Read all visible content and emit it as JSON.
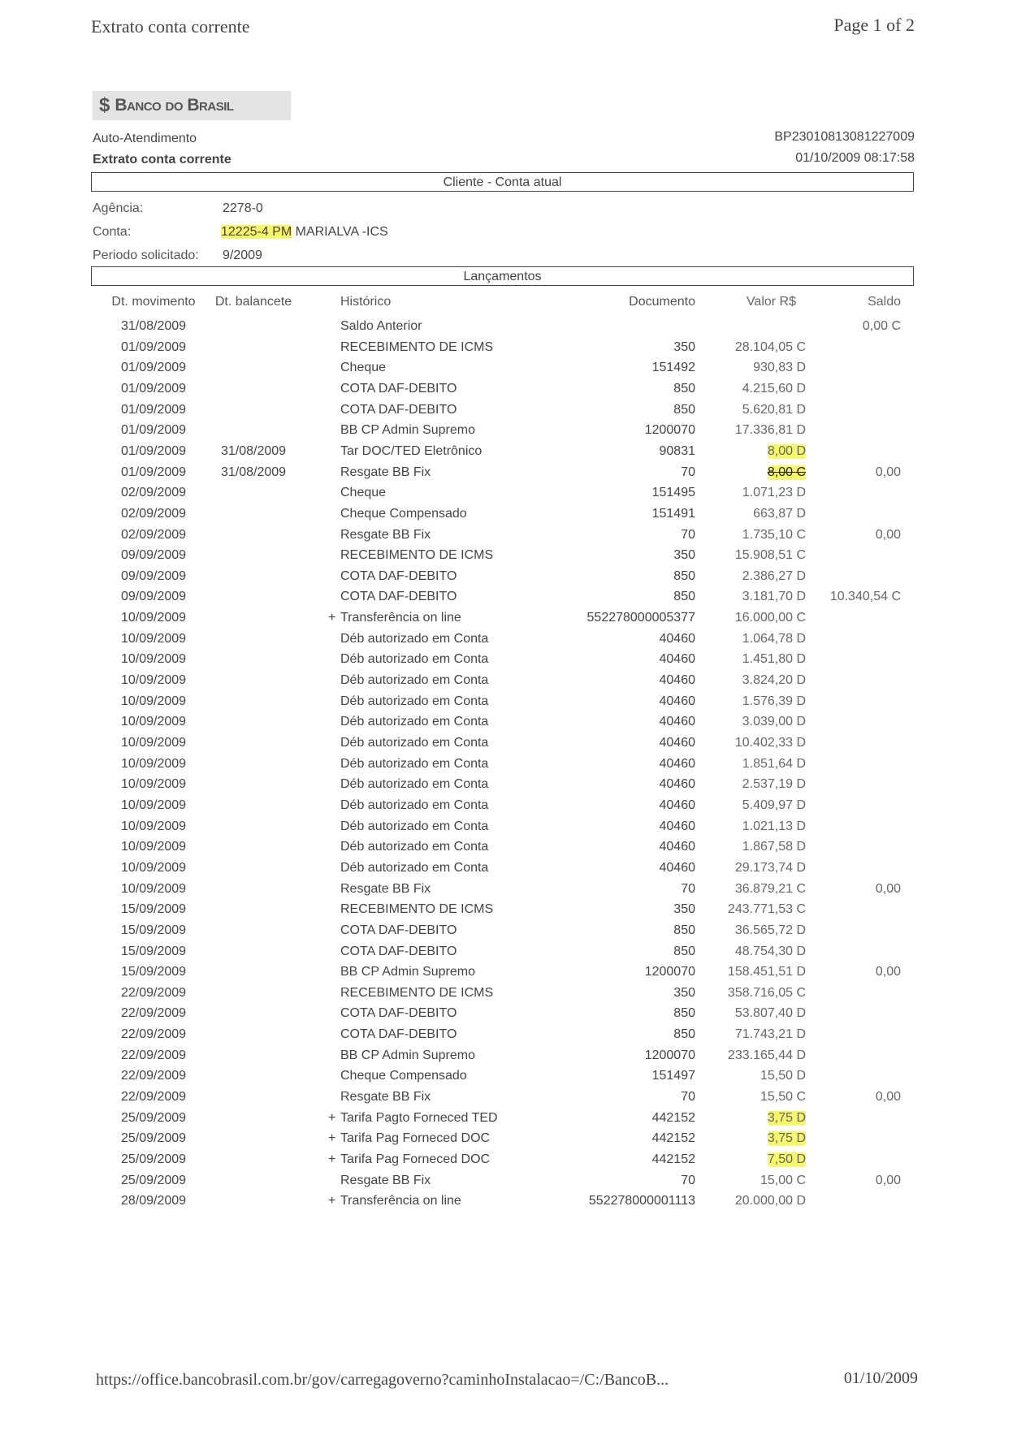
{
  "page_header": {
    "title": "Extrato conta corrente",
    "page": "Page 1 of 2"
  },
  "logo": {
    "text": "Banco do Brasil",
    "icon": "banco-do-brasil-logo-icon"
  },
  "header": {
    "left1": "Auto-Atendimento",
    "left2": "Extrato conta corrente",
    "right1": "BP23010813081227009",
    "right2": "01/10/2009 08:17:58"
  },
  "cliente_box": "Cliente - Conta atual",
  "account": {
    "agencia_label": "Agência:",
    "agencia": "2278-0",
    "conta_label": "Conta:",
    "conta_number": "12225-4 PM",
    "conta_name": " MARIALVA -ICS",
    "periodo_label": "Periodo solicitado:",
    "periodo": "9/2009"
  },
  "lancamentos_box": "Lançamentos",
  "columns": {
    "mov": "Dt. movimento",
    "bal": "Dt. balancete",
    "hist": "Histórico",
    "doc": "Documento",
    "val": "Valor R$",
    "sal": "Saldo"
  },
  "highlight_color": "#f7f76a",
  "rows": [
    {
      "mov": "31/08/2009",
      "bal": "",
      "plus": "",
      "hist": "Saldo Anterior",
      "doc": "",
      "val": "",
      "sal": "0,00 C"
    },
    {
      "mov": "01/09/2009",
      "bal": "",
      "plus": "",
      "hist": "RECEBIMENTO DE ICMS",
      "doc": "350",
      "val": "28.104,05 C",
      "sal": ""
    },
    {
      "mov": "01/09/2009",
      "bal": "",
      "plus": "",
      "hist": "Cheque",
      "doc": "151492",
      "val": "930,83 D",
      "sal": ""
    },
    {
      "mov": "01/09/2009",
      "bal": "",
      "plus": "",
      "hist": "COTA DAF-DEBITO",
      "doc": "850",
      "val": "4.215,60 D",
      "sal": ""
    },
    {
      "mov": "01/09/2009",
      "bal": "",
      "plus": "",
      "hist": "COTA DAF-DEBITO",
      "doc": "850",
      "val": "5.620,81 D",
      "sal": ""
    },
    {
      "mov": "01/09/2009",
      "bal": "",
      "plus": "",
      "hist": "BB CP Admin Supremo",
      "doc": "1200070",
      "val": "17.336,81 D",
      "sal": ""
    },
    {
      "mov": "01/09/2009",
      "bal": "31/08/2009",
      "plus": "",
      "hist": "Tar DOC/TED Eletrônico",
      "doc": "90831",
      "val": "8,00 D",
      "sal": "",
      "highlight": true
    },
    {
      "mov": "01/09/2009",
      "bal": "31/08/2009",
      "plus": "",
      "hist": "Resgate BB Fix",
      "doc": "70",
      "val": "8,00 C",
      "sal": "0,00",
      "highlight": true,
      "struck": true
    },
    {
      "mov": "02/09/2009",
      "bal": "",
      "plus": "",
      "hist": "Cheque",
      "doc": "151495",
      "val": "1.071,23 D",
      "sal": ""
    },
    {
      "mov": "02/09/2009",
      "bal": "",
      "plus": "",
      "hist": "Cheque Compensado",
      "doc": "151491",
      "val": "663,87 D",
      "sal": ""
    },
    {
      "mov": "02/09/2009",
      "bal": "",
      "plus": "",
      "hist": "Resgate BB Fix",
      "doc": "70",
      "val": "1.735,10 C",
      "sal": "0,00"
    },
    {
      "mov": "09/09/2009",
      "bal": "",
      "plus": "",
      "hist": "RECEBIMENTO DE ICMS",
      "doc": "350",
      "val": "15.908,51 C",
      "sal": ""
    },
    {
      "mov": "09/09/2009",
      "bal": "",
      "plus": "",
      "hist": "COTA DAF-DEBITO",
      "doc": "850",
      "val": "2.386,27 D",
      "sal": ""
    },
    {
      "mov": "09/09/2009",
      "bal": "",
      "plus": "",
      "hist": "COTA DAF-DEBITO",
      "doc": "850",
      "val": "3.181,70 D",
      "sal": "10.340,54 C"
    },
    {
      "mov": "10/09/2009",
      "bal": "",
      "plus": "+",
      "hist": "Transferência on line",
      "doc": "552278000005377",
      "val": "16.000,00 C",
      "sal": ""
    },
    {
      "mov": "10/09/2009",
      "bal": "",
      "plus": "",
      "hist": "Déb autorizado em Conta",
      "doc": "40460",
      "val": "1.064,78 D",
      "sal": ""
    },
    {
      "mov": "10/09/2009",
      "bal": "",
      "plus": "",
      "hist": "Déb autorizado em Conta",
      "doc": "40460",
      "val": "1.451,80 D",
      "sal": ""
    },
    {
      "mov": "10/09/2009",
      "bal": "",
      "plus": "",
      "hist": "Déb autorizado em Conta",
      "doc": "40460",
      "val": "3.824,20 D",
      "sal": ""
    },
    {
      "mov": "10/09/2009",
      "bal": "",
      "plus": "",
      "hist": "Déb autorizado em Conta",
      "doc": "40460",
      "val": "1.576,39 D",
      "sal": ""
    },
    {
      "mov": "10/09/2009",
      "bal": "",
      "plus": "",
      "hist": "Déb autorizado em Conta",
      "doc": "40460",
      "val": "3.039,00 D",
      "sal": ""
    },
    {
      "mov": "10/09/2009",
      "bal": "",
      "plus": "",
      "hist": "Déb autorizado em Conta",
      "doc": "40460",
      "val": "10.402,33 D",
      "sal": ""
    },
    {
      "mov": "10/09/2009",
      "bal": "",
      "plus": "",
      "hist": "Déb autorizado em Conta",
      "doc": "40460",
      "val": "1.851,64 D",
      "sal": ""
    },
    {
      "mov": "10/09/2009",
      "bal": "",
      "plus": "",
      "hist": "Déb autorizado em Conta",
      "doc": "40460",
      "val": "2.537,19 D",
      "sal": ""
    },
    {
      "mov": "10/09/2009",
      "bal": "",
      "plus": "",
      "hist": "Déb autorizado em Conta",
      "doc": "40460",
      "val": "5.409,97 D",
      "sal": ""
    },
    {
      "mov": "10/09/2009",
      "bal": "",
      "plus": "",
      "hist": "Déb autorizado em Conta",
      "doc": "40460",
      "val": "1.021,13 D",
      "sal": ""
    },
    {
      "mov": "10/09/2009",
      "bal": "",
      "plus": "",
      "hist": "Déb autorizado em Conta",
      "doc": "40460",
      "val": "1.867,58 D",
      "sal": ""
    },
    {
      "mov": "10/09/2009",
      "bal": "",
      "plus": "",
      "hist": "Déb autorizado em Conta",
      "doc": "40460",
      "val": "29.173,74 D",
      "sal": ""
    },
    {
      "mov": "10/09/2009",
      "bal": "",
      "plus": "",
      "hist": "Resgate BB Fix",
      "doc": "70",
      "val": "36.879,21 C",
      "sal": "0,00"
    },
    {
      "mov": "15/09/2009",
      "bal": "",
      "plus": "",
      "hist": "RECEBIMENTO DE ICMS",
      "doc": "350",
      "val": "243.771,53 C",
      "sal": ""
    },
    {
      "mov": "15/09/2009",
      "bal": "",
      "plus": "",
      "hist": "COTA DAF-DEBITO",
      "doc": "850",
      "val": "36.565,72 D",
      "sal": ""
    },
    {
      "mov": "15/09/2009",
      "bal": "",
      "plus": "",
      "hist": "COTA DAF-DEBITO",
      "doc": "850",
      "val": "48.754,30 D",
      "sal": ""
    },
    {
      "mov": "15/09/2009",
      "bal": "",
      "plus": "",
      "hist": "BB CP Admin Supremo",
      "doc": "1200070",
      "val": "158.451,51 D",
      "sal": "0,00"
    },
    {
      "mov": "22/09/2009",
      "bal": "",
      "plus": "",
      "hist": "RECEBIMENTO DE ICMS",
      "doc": "350",
      "val": "358.716,05 C",
      "sal": ""
    },
    {
      "mov": "22/09/2009",
      "bal": "",
      "plus": "",
      "hist": "COTA DAF-DEBITO",
      "doc": "850",
      "val": "53.807,40 D",
      "sal": ""
    },
    {
      "mov": "22/09/2009",
      "bal": "",
      "plus": "",
      "hist": "COTA DAF-DEBITO",
      "doc": "850",
      "val": "71.743,21 D",
      "sal": ""
    },
    {
      "mov": "22/09/2009",
      "bal": "",
      "plus": "",
      "hist": "BB CP Admin Supremo",
      "doc": "1200070",
      "val": "233.165,44 D",
      "sal": ""
    },
    {
      "mov": "22/09/2009",
      "bal": "",
      "plus": "",
      "hist": "Cheque Compensado",
      "doc": "151497",
      "val": "15,50 D",
      "sal": ""
    },
    {
      "mov": "22/09/2009",
      "bal": "",
      "plus": "",
      "hist": "Resgate BB Fix",
      "doc": "70",
      "val": "15,50 C",
      "sal": "0,00"
    },
    {
      "mov": "25/09/2009",
      "bal": "",
      "plus": "+",
      "hist": "Tarifa Pagto Forneced TED",
      "doc": "442152",
      "val": "3,75 D",
      "sal": "",
      "highlight": true
    },
    {
      "mov": "25/09/2009",
      "bal": "",
      "plus": "+",
      "hist": "Tarifa Pag Forneced DOC",
      "doc": "442152",
      "val": "3,75 D",
      "sal": "",
      "highlight": true
    },
    {
      "mov": "25/09/2009",
      "bal": "",
      "plus": "+",
      "hist": "Tarifa Pag Forneced DOC",
      "doc": "442152",
      "val": "7,50 D",
      "sal": "",
      "highlight": true
    },
    {
      "mov": "25/09/2009",
      "bal": "",
      "plus": "",
      "hist": "Resgate BB Fix",
      "doc": "70",
      "val": "15,00 C",
      "sal": "0,00"
    },
    {
      "mov": "28/09/2009",
      "bal": "",
      "plus": "+",
      "hist": "Transferência on line",
      "doc": "552278000001113",
      "val": "20.000,00 D",
      "sal": ""
    }
  ],
  "footer": {
    "url": "https://office.bancobrasil.com.br/gov/carregagoverno?caminhoInstalacao=/C:/BancoB...",
    "date": "01/10/2009"
  }
}
